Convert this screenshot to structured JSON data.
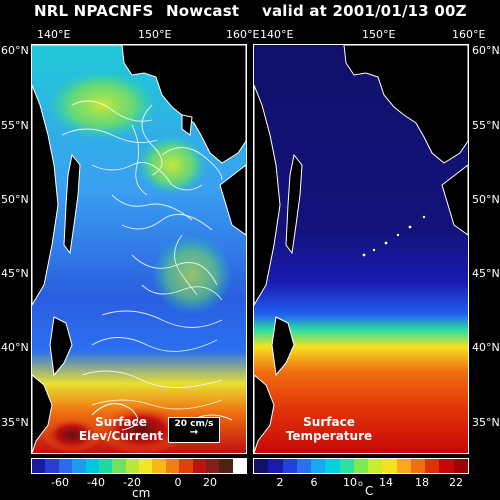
{
  "header": {
    "source": "NRL NPACNFS",
    "product": "Nowcast",
    "valid": "valid at 2001/01/13 00Z"
  },
  "lon_labels": [
    "140°E",
    "150°E",
    "160°E"
  ],
  "lat_labels": [
    "60°N",
    "55°N",
    "50°N",
    "45°N",
    "40°N",
    "35°N"
  ],
  "left_panel": {
    "label_line1": "Surface",
    "label_line2": "Elev/Current",
    "vector_legend": "20 cm/s",
    "colorbar_ticks": [
      "-60",
      "-40",
      "-20",
      "0",
      "20"
    ],
    "unit": "cm",
    "colors": [
      "#1a1aa0",
      "#2a3cd8",
      "#2b6af0",
      "#1c9cf0",
      "#00c8e0",
      "#20d8a0",
      "#70e060",
      "#b8e838",
      "#f0e820",
      "#f8b818",
      "#f08010",
      "#e04008",
      "#c01010",
      "#802018",
      "#502010",
      "#ffffff"
    ]
  },
  "right_panel": {
    "label_line1": "Surface",
    "label_line2": "Temperature",
    "colorbar_ticks": [
      "2",
      "6",
      "10",
      "14",
      "18",
      "22"
    ],
    "unit_prefix": "o",
    "unit": "C",
    "colors": [
      "#10106a",
      "#1a1ab0",
      "#2040e0",
      "#2a70f0",
      "#1aa8f0",
      "#00d0e0",
      "#30e0a0",
      "#80e850",
      "#c8ec30",
      "#f8e020",
      "#f8a818",
      "#f07010",
      "#e03008",
      "#c80808",
      "#a00000"
    ]
  }
}
